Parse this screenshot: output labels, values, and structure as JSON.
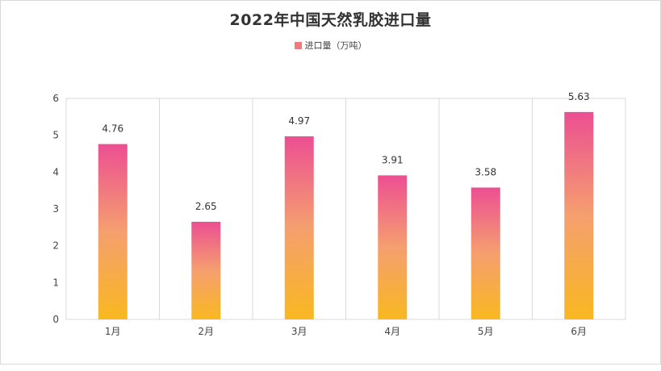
{
  "chart_data": {
    "type": "bar",
    "title": "2022年中国天然乳胶进口量",
    "legend": [
      "进口量（万吨）"
    ],
    "categories": [
      "1月",
      "2月",
      "3月",
      "4月",
      "5月",
      "6月"
    ],
    "series": [
      {
        "name": "进口量（万吨）",
        "values": [
          4.76,
          2.65,
          4.97,
          3.91,
          3.58,
          5.63
        ]
      }
    ],
    "yticks": [
      "0",
      "1",
      "2",
      "3",
      "4",
      "5",
      "6"
    ],
    "ylim": [
      0,
      6
    ],
    "grid": "vertical",
    "legend_position": "top-center",
    "colors": {
      "bar_top": "#ec4f92",
      "bar_mid": "#f59f6f",
      "bar_bottom": "#f9b820",
      "legend_swatch": "#f27a7e"
    }
  }
}
